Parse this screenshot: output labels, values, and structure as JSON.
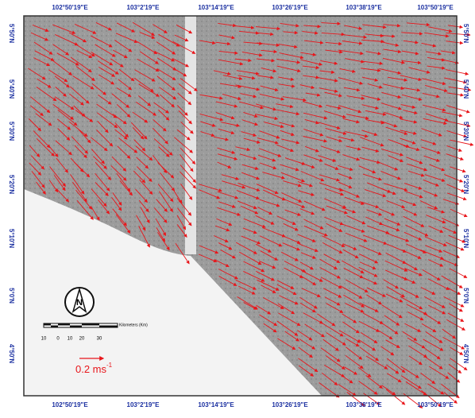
{
  "map": {
    "top_labels": [
      "102°50'19\"E",
      "103°2'19\"E",
      "103°14'19\"E",
      "103°26'19\"E",
      "103°38'19\"E",
      "103°50'19\"E"
    ],
    "bottom_labels": [
      "102°50'19\"E",
      "103°2'19\"E",
      "103°14'19\"E",
      "103°26'19\"E",
      "103°38'19\"E",
      "103°50'19\"E"
    ],
    "left_labels": [
      "5°50'N",
      "5°40'N",
      "5°30'N",
      "5°20'N",
      "5°10'N",
      "5°0'N",
      "4°50'N"
    ],
    "right_labels": [
      "5°50'N",
      "5°40'N",
      "5°30'N",
      "5°20'N",
      "5°10'N",
      "5°0'N",
      "4°50'N"
    ],
    "compass": "N",
    "scale_unit": "Kilometers (Km)",
    "scale_ticks": [
      "10",
      "0",
      "10",
      "20",
      "30"
    ],
    "speed_label": "0.2 ms",
    "speed_exponent": "-1"
  }
}
